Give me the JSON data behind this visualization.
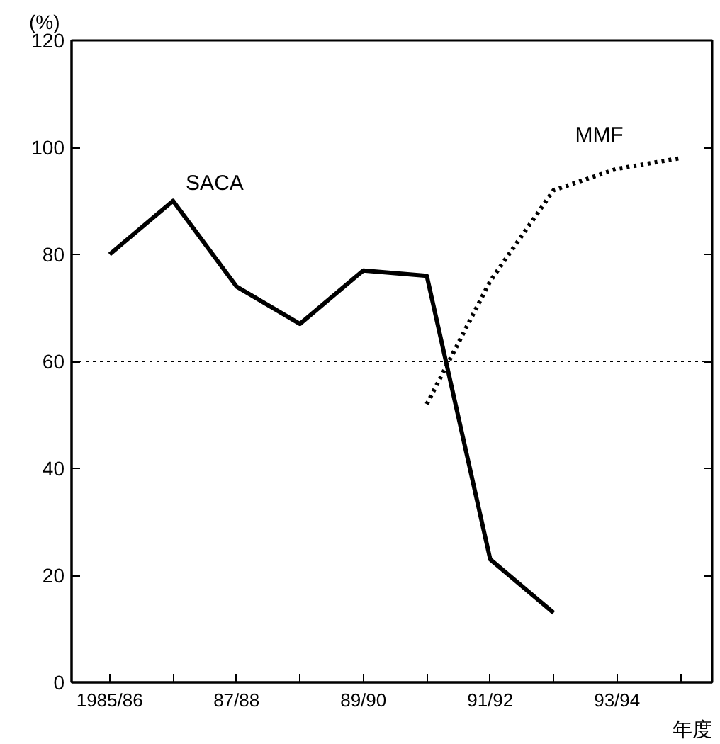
{
  "chart_data": {
    "type": "line",
    "ylabel": "(%)",
    "xlabel": "年度",
    "categories": [
      "1985/86",
      null,
      "87/88",
      null,
      "89/90",
      null,
      "91/92",
      null,
      "93/94",
      null
    ],
    "series": [
      {
        "name": "SACA",
        "color": "#000000",
        "line_style": "solid",
        "values": [
          80,
          90,
          74,
          67,
          77,
          76,
          23,
          13,
          null,
          null
        ]
      },
      {
        "name": "MMF",
        "color": "#000000",
        "line_style": "dotted",
        "values": [
          null,
          null,
          null,
          null,
          null,
          52,
          75,
          92,
          96,
          98
        ]
      }
    ],
    "ylim": [
      0,
      120
    ],
    "yticks": [
      0,
      20,
      40,
      60,
      80,
      100,
      120
    ],
    "ref_lines": [
      {
        "axis": "y",
        "value": 60,
        "line_style": "dotted",
        "color": "#000000"
      }
    ],
    "grid": false,
    "legend": false,
    "marker": "none"
  }
}
